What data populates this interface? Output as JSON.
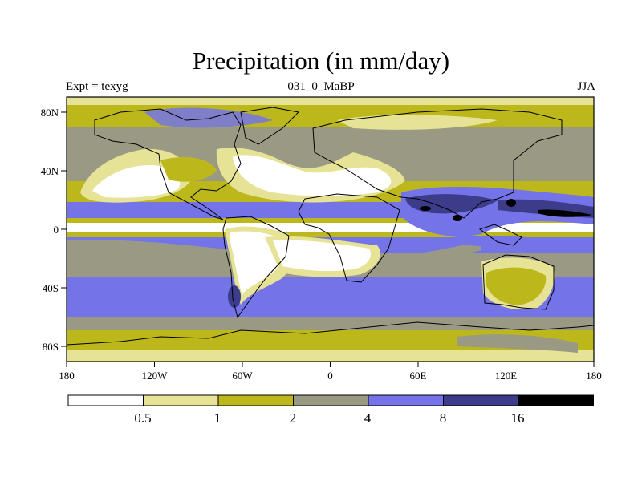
{
  "title": "Precipitation (in mm/day)",
  "subtitle_left": "Expt = texyg",
  "subtitle_center": "031_0_MaBP",
  "subtitle_right": "JJA",
  "x_ticks": [
    "180",
    "120W",
    "60W",
    "0",
    "60E",
    "120E",
    "180"
  ],
  "y_ticks": [
    "80N",
    "40N",
    "0",
    "40S",
    "80S"
  ],
  "colorbar": {
    "levels": [
      "0.5",
      "1",
      "2",
      "4",
      "8",
      "16"
    ],
    "colors": [
      "#ffffff",
      "#e6e296",
      "#bcb81c",
      "#9a9a84",
      "#7474e8",
      "#3c3c8a",
      "#000000"
    ]
  },
  "palette": {
    "dry": "#ffffff",
    "light": "#e6e296",
    "olive": "#bcb81c",
    "gray": "#9a9a84",
    "blue": "#7474e8",
    "navy": "#3c3c8a",
    "black": "#000000"
  }
}
